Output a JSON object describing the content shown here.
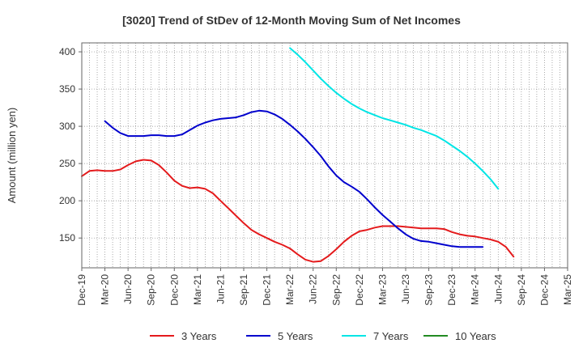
{
  "chart_data": {
    "type": "line",
    "title": "[3020]  Trend of StDev of 12-Month Moving Sum of Net Incomes",
    "xlabel": "",
    "ylabel": "Amount (million yen)",
    "ylim": [
      110,
      412
    ],
    "yticks": [
      150,
      200,
      250,
      300,
      350,
      400
    ],
    "x_ticks": [
      "Dec-19",
      "Mar-20",
      "Jun-20",
      "Sep-20",
      "Dec-20",
      "Mar-21",
      "Jun-21",
      "Sep-21",
      "Dec-21",
      "Mar-22",
      "Jun-22",
      "Sep-22",
      "Dec-22",
      "Mar-23",
      "Jun-23",
      "Sep-23",
      "Dec-23",
      "Mar-24",
      "Jun-24",
      "Sep-24",
      "Dec-24",
      "Mar-25"
    ],
    "grid": true,
    "legend_position": "bottom",
    "series": [
      {
        "name": "3 Years",
        "color": "#e41a1c",
        "start_index": 0,
        "values": [
          233,
          240,
          241,
          240,
          240,
          242,
          248,
          253,
          255,
          254,
          248,
          238,
          227,
          220,
          217,
          218,
          216,
          210,
          200,
          190,
          180,
          170,
          161,
          155,
          150,
          145,
          141,
          136,
          128,
          121,
          118,
          119,
          126,
          135,
          145,
          153,
          159,
          161,
          164,
          166,
          166,
          166,
          165,
          164,
          163,
          163,
          163,
          162,
          158,
          155,
          153,
          152,
          150,
          148,
          145,
          138,
          125
        ]
      },
      {
        "name": "5 Years",
        "color": "#0000cd",
        "start_index": 3,
        "values": [
          307,
          298,
          291,
          287,
          287,
          287,
          288,
          288,
          287,
          287,
          289,
          295,
          301,
          305,
          308,
          310,
          311,
          312,
          315,
          319,
          321,
          320,
          316,
          310,
          302,
          293,
          283,
          272,
          260,
          246,
          234,
          225,
          219,
          212,
          202,
          191,
          181,
          172,
          163,
          155,
          149,
          146,
          145,
          143,
          141,
          139,
          138,
          138,
          138,
          138
        ]
      },
      {
        "name": "7 Years",
        "color": "#00e5e5",
        "start_index": 27,
        "values": [
          405,
          396,
          386,
          375,
          364,
          354,
          345,
          337,
          330,
          324,
          319,
          315,
          311,
          308,
          305,
          302,
          298,
          295,
          291,
          287,
          281,
          274,
          267,
          259,
          250,
          240,
          229,
          216
        ]
      },
      {
        "name": "10 Years",
        "color": "#228b22",
        "start_index": 0,
        "values": []
      }
    ]
  }
}
